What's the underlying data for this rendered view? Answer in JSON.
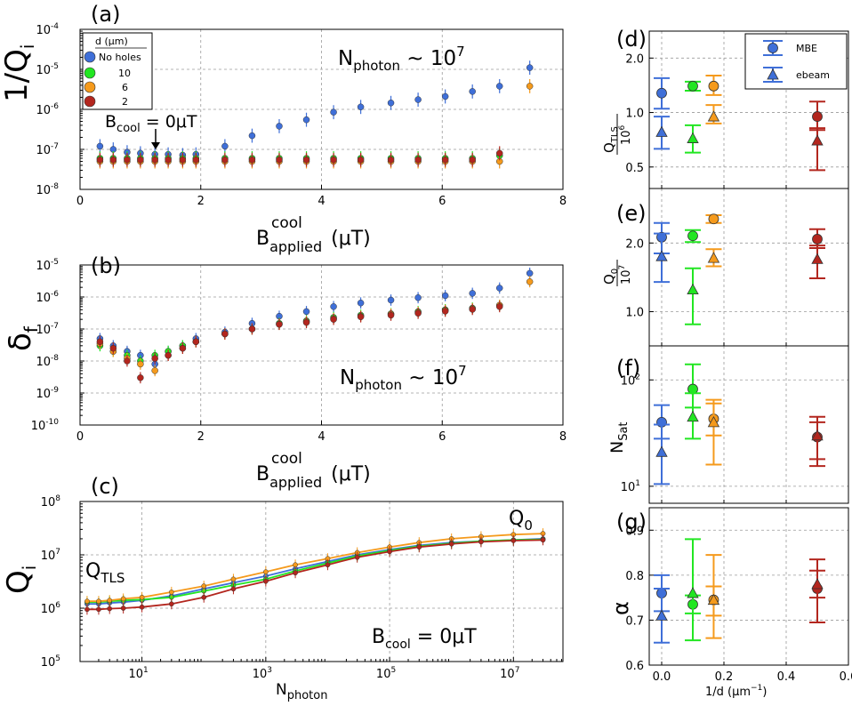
{
  "colors": {
    "nohole": "#3f6fd8",
    "d10": "#22e622",
    "d6": "#f59a1c",
    "d2": "#b3261e"
  },
  "chart_data": [
    {
      "panel": "a",
      "label": "(a)",
      "type": "scatter",
      "xlim": [
        0,
        8
      ],
      "ylim_log10": [
        -8,
        -4
      ],
      "xticks": [
        "0",
        "2",
        "4",
        "6",
        "8"
      ],
      "yticks": [
        "10",
        "10",
        "10",
        "10",
        "10"
      ],
      "yticks_exp": [
        "-8",
        "-7",
        "-6",
        "-5",
        "-4"
      ],
      "ylabel": "1/Q",
      "ylabel_sub": "i",
      "xlabel": "B",
      "xlabel_sub": "applied",
      "xlabel_sup": "cool",
      "xlabel_unit": "(μT)",
      "annotation_main": "N",
      "annotation_main_sub": "photon",
      "annotation_main_rest": " ~ 10",
      "annotation_main_exp": "7",
      "annotation_2": "B",
      "annotation_2_sub": "cool",
      "annotation_2_rest": " = 0μT",
      "legend_title": "d (μm)",
      "legend_entries": [
        "No holes",
        "10",
        "6",
        "2"
      ],
      "series": [
        {
          "name": "No holes",
          "color_key": "nohole",
          "x": [
            0.33,
            0.55,
            0.78,
            1.0,
            1.24,
            1.46,
            1.7,
            1.92,
            2.4,
            2.85,
            3.3,
            3.75,
            4.2,
            4.65,
            5.15,
            5.6,
            6.05,
            6.5,
            6.95,
            7.45
          ],
          "y": [
            1.2e-07,
            1e-07,
            8.5e-08,
            8e-08,
            7.5e-08,
            7.5e-08,
            7.2e-08,
            7.5e-08,
            1.2e-07,
            2.2e-07,
            3.8e-07,
            5.5e-07,
            8.5e-07,
            1.15e-06,
            1.45e-06,
            1.75e-06,
            2.1e-06,
            2.8e-06,
            3.8e-06,
            1.1e-05
          ]
        },
        {
          "name": "10",
          "color_key": "d10",
          "x": [
            0.33,
            0.55,
            0.78,
            1.0,
            1.24,
            1.46,
            1.7,
            1.92,
            2.4,
            2.85,
            3.3,
            3.75,
            4.2,
            4.65,
            5.15,
            5.6,
            6.05,
            6.5,
            6.95
          ],
          "y": [
            6e-08,
            6e-08,
            6e-08,
            6e-08,
            6e-08,
            6e-08,
            6e-08,
            6e-08,
            6e-08,
            6e-08,
            6e-08,
            6e-08,
            6e-08,
            6e-08,
            6e-08,
            6e-08,
            6e-08,
            6e-08,
            7e-08
          ]
        },
        {
          "name": "6",
          "color_key": "d6",
          "x": [
            0.33,
            0.55,
            0.78,
            1.0,
            1.24,
            1.46,
            1.7,
            1.92,
            2.4,
            2.85,
            3.3,
            3.75,
            4.2,
            4.65,
            5.15,
            5.6,
            6.05,
            6.5,
            6.95,
            7.45
          ],
          "y": [
            5e-08,
            5e-08,
            5e-08,
            5e-08,
            5e-08,
            5e-08,
            5e-08,
            5e-08,
            5e-08,
            5e-08,
            5e-08,
            5e-08,
            5e-08,
            5e-08,
            5e-08,
            5e-08,
            5e-08,
            5e-08,
            5e-08,
            3.8e-06
          ]
        },
        {
          "name": "2",
          "color_key": "d2",
          "x": [
            0.33,
            0.55,
            0.78,
            1.0,
            1.24,
            1.46,
            1.7,
            1.92,
            2.4,
            2.85,
            3.3,
            3.75,
            4.2,
            4.65,
            5.15,
            5.6,
            6.05,
            6.5,
            6.95
          ],
          "y": [
            5.5e-08,
            5.5e-08,
            5.5e-08,
            5.5e-08,
            5.5e-08,
            5.5e-08,
            5.5e-08,
            5.5e-08,
            5.5e-08,
            5.5e-08,
            5.5e-08,
            5.5e-08,
            5.5e-08,
            5.5e-08,
            5.5e-08,
            5.5e-08,
            5.5e-08,
            5.5e-08,
            8e-08
          ]
        }
      ]
    },
    {
      "panel": "b",
      "label": "(b)",
      "type": "scatter",
      "xlim": [
        0,
        8
      ],
      "ylim_log10": [
        -10,
        -5
      ],
      "xticks": [
        "0",
        "2",
        "4",
        "6",
        "8"
      ],
      "yticks": [
        "10",
        "10",
        "10",
        "10",
        "10",
        "10"
      ],
      "yticks_exp": [
        "-10",
        "-9",
        "-8",
        "-7",
        "-6",
        "-5"
      ],
      "ylabel": "δ",
      "ylabel_sub": "f",
      "xlabel": "B",
      "xlabel_sub": "applied",
      "xlabel_sup": "cool",
      "xlabel_unit": "(μT)",
      "annotation_main": "N",
      "annotation_main_sub": "photon",
      "annotation_main_rest": " ~ 10",
      "annotation_main_exp": "7",
      "series": [
        {
          "name": "No holes",
          "color_key": "nohole",
          "x": [
            0.33,
            0.55,
            0.78,
            1.0,
            1.24,
            1.46,
            1.7,
            1.92,
            2.4,
            2.85,
            3.3,
            3.75,
            4.2,
            4.65,
            5.15,
            5.6,
            6.05,
            6.5,
            6.95,
            7.45
          ],
          "y": [
            5e-08,
            3e-08,
            2e-08,
            1.5e-08,
            8e-09,
            2e-08,
            3e-08,
            5e-08,
            8e-08,
            1.5e-07,
            2.5e-07,
            3.5e-07,
            5e-07,
            6.5e-07,
            8e-07,
            9.5e-07,
            1.1e-06,
            1.3e-06,
            1.9e-06,
            5.5e-06
          ]
        },
        {
          "name": "10",
          "color_key": "d10",
          "x": [
            0.33,
            0.55,
            0.78,
            1.0,
            1.24,
            1.46,
            1.7,
            1.92,
            2.4,
            2.85,
            3.3,
            3.75,
            4.2,
            4.65,
            5.15,
            5.6,
            6.05,
            6.5,
            6.95
          ],
          "y": [
            3e-08,
            2e-08,
            1.5e-08,
            1e-08,
            1.5e-08,
            2e-08,
            3e-08,
            4e-08,
            7e-08,
            1e-07,
            1.5e-07,
            1.8e-07,
            2.3e-07,
            2.7e-07,
            3e-07,
            3.5e-07,
            4e-07,
            4.5e-07,
            5.5e-07
          ]
        },
        {
          "name": "6",
          "color_key": "d6",
          "x": [
            0.33,
            0.55,
            0.78,
            1.0,
            1.24,
            1.46,
            1.7,
            1.92,
            2.4,
            2.85,
            3.3,
            3.75,
            4.2,
            4.65,
            5.15,
            5.6,
            6.05,
            6.5,
            6.95,
            7.45
          ],
          "y": [
            3.5e-08,
            2e-08,
            1.2e-08,
            8e-09,
            5e-09,
            1.5e-08,
            2.5e-08,
            4e-08,
            7e-08,
            1e-07,
            1.4e-07,
            1.7e-07,
            2.1e-07,
            2.5e-07,
            2.9e-07,
            3.3e-07,
            3.8e-07,
            4.3e-07,
            5.5e-07,
            3e-06
          ]
        },
        {
          "name": "2",
          "color_key": "d2",
          "x": [
            0.33,
            0.55,
            0.78,
            1.0,
            1.24,
            1.46,
            1.7,
            1.92,
            2.4,
            2.85,
            3.3,
            3.75,
            4.2,
            4.65,
            5.15,
            5.6,
            6.05,
            6.5,
            6.95
          ],
          "y": [
            4e-08,
            2.5e-08,
            1e-08,
            3e-09,
            1.2e-08,
            1.5e-08,
            2.5e-08,
            4e-08,
            7e-08,
            1e-07,
            1.4e-07,
            1.6e-07,
            2e-07,
            2.4e-07,
            2.7e-07,
            3.1e-07,
            3.6e-07,
            4.1e-07,
            5e-07
          ]
        }
      ]
    },
    {
      "panel": "c",
      "label": "(c)",
      "type": "line",
      "xlim_log10": [
        0,
        7.8
      ],
      "ylim_log10": [
        5,
        8
      ],
      "xticks": [
        "10",
        "10",
        "10",
        "10"
      ],
      "xticks_exp": [
        "1",
        "3",
        "5",
        "7"
      ],
      "yticks": [
        "10",
        "10",
        "10",
        "10"
      ],
      "yticks_exp": [
        "5",
        "6",
        "7",
        "8"
      ],
      "ylabel": "Q",
      "ylabel_sub": "i",
      "xlabel": "N",
      "xlabel_sub": "photon",
      "annotation_tls": "Q",
      "annotation_tls_sub": "TLS",
      "annotation_q0": "Q",
      "annotation_q0_sub": "0",
      "annotation_b": "B",
      "annotation_b_sub": "cool",
      "annotation_b_rest": " = 0μT",
      "series": [
        {
          "name": "No holes",
          "color_key": "nohole",
          "x": [
            1.3,
            2.0,
            3.0,
            5.0,
            10,
            30,
            100,
            300,
            1000,
            3000,
            10000.0,
            30000.0,
            100000.0,
            300000.0,
            1000000.0,
            3000000.0,
            10000000.0,
            30000000.0
          ],
          "y": [
            1200000.0,
            1200000.0,
            1250000.0,
            1300000.0,
            1400000.0,
            1700000.0,
            2300000.0,
            3000000.0,
            4000000.0,
            5500000.0,
            7500000.0,
            10000000.0,
            12500000.0,
            15000000.0,
            17000000.0,
            18000000.0,
            19000000.0,
            20000000.0
          ]
        },
        {
          "name": "10",
          "color_key": "d10",
          "x": [
            1.3,
            2.0,
            3.0,
            5.0,
            10,
            30,
            100,
            300,
            1000,
            3000,
            10000.0,
            30000.0,
            100000.0,
            300000.0,
            1000000.0,
            3000000.0,
            10000000.0,
            30000000.0
          ],
          "y": [
            1300000.0,
            1300000.0,
            1350000.0,
            1400000.0,
            1450000.0,
            1600000.0,
            2100000.0,
            2700000.0,
            3500000.0,
            5000000.0,
            7000000.0,
            9500000.0,
            12000000.0,
            14500000.0,
            16500000.0,
            18000000.0,
            19000000.0,
            19500000.0
          ]
        },
        {
          "name": "6",
          "color_key": "d6",
          "x": [
            1.3,
            2.0,
            3.0,
            5.0,
            10,
            30,
            100,
            300,
            1000,
            3000,
            10000.0,
            30000.0,
            100000.0,
            300000.0,
            1000000.0,
            3000000.0,
            10000000.0,
            30000000.0
          ],
          "y": [
            1350000.0,
            1350000.0,
            1400000.0,
            1500000.0,
            1600000.0,
            2000000.0,
            2600000.0,
            3500000.0,
            4800000.0,
            6500000.0,
            8500000.0,
            11000000.0,
            14000000.0,
            17000000.0,
            20000000.0,
            22000000.0,
            24000000.0,
            25000000.0
          ]
        },
        {
          "name": "2",
          "color_key": "d2",
          "x": [
            1.3,
            2.0,
            3.0,
            5.0,
            10,
            30,
            100,
            300,
            1000,
            3000,
            10000.0,
            30000.0,
            100000.0,
            300000.0,
            1000000.0,
            3000000.0,
            10000000.0,
            30000000.0
          ],
          "y": [
            950000.0,
            950000.0,
            980000.0,
            1000000.0,
            1050000.0,
            1200000.0,
            1600000.0,
            2300000.0,
            3200000.0,
            4600000.0,
            6500000.0,
            9000000.0,
            11500000.0,
            14000000.0,
            16000000.0,
            17500000.0,
            18500000.0,
            19000000.0
          ]
        }
      ]
    },
    {
      "panel": "d",
      "label": "(d)",
      "type": "scatter",
      "ylim_log10": [
        -0.42,
        0.45
      ],
      "yticks": [
        "0.5",
        "1.0",
        "2.0"
      ],
      "yticks_vals": [
        0.5,
        1.0,
        2.0
      ],
      "ylabel_num": "Q",
      "ylabel_num_sub": "TLS",
      "ylabel_den": "10",
      "ylabel_den_exp": "6",
      "legend_entries": [
        "MBE",
        "ebeam"
      ],
      "points": [
        {
          "x": 0.0,
          "mbe": 1.28,
          "mbe_err": [
            1.05,
            1.55
          ],
          "ebeam": 0.78,
          "ebeam_err": [
            0.63,
            0.95
          ],
          "color_key": "nohole"
        },
        {
          "x": 0.1,
          "mbe": 1.4,
          "mbe_err": [
            1.32,
            1.48
          ],
          "ebeam": 0.72,
          "ebeam_err": [
            0.6,
            0.85
          ],
          "color_key": "d10"
        },
        {
          "x": 0.167,
          "mbe": 1.4,
          "mbe_err": [
            1.25,
            1.6
          ],
          "ebeam": 0.95,
          "ebeam_err": [
            0.87,
            1.1
          ],
          "color_key": "d6"
        },
        {
          "x": 0.5,
          "mbe": 0.95,
          "mbe_err": [
            0.8,
            1.15
          ],
          "ebeam": 0.7,
          "ebeam_err": [
            0.48,
            0.82
          ],
          "color_key": "d2"
        }
      ]
    },
    {
      "panel": "e",
      "label": "(e)",
      "type": "scatter",
      "ylim_log10": [
        -0.15,
        0.54
      ],
      "yticks": [
        "1.0",
        "2.0"
      ],
      "yticks_vals": [
        1.0,
        2.0
      ],
      "ylabel_num": "Q",
      "ylabel_num_sub": "0",
      "ylabel_den": "10",
      "ylabel_den_exp": "7",
      "points": [
        {
          "x": 0.0,
          "mbe": 2.12,
          "mbe_err": [
            1.8,
            2.45
          ],
          "ebeam": 1.75,
          "ebeam_err": [
            1.35,
            2.2
          ],
          "color_key": "nohole"
        },
        {
          "x": 0.1,
          "mbe": 2.15,
          "mbe_err": [
            2.02,
            2.28
          ],
          "ebeam": 1.25,
          "ebeam_err": [
            0.88,
            1.55
          ],
          "color_key": "d10"
        },
        {
          "x": 0.167,
          "mbe": 2.55,
          "mbe_err": [
            2.45,
            2.65
          ],
          "ebeam": 1.72,
          "ebeam_err": [
            1.58,
            1.88
          ],
          "color_key": "d6"
        },
        {
          "x": 0.5,
          "mbe": 2.08,
          "mbe_err": [
            1.9,
            2.3
          ],
          "ebeam": 1.7,
          "ebeam_err": [
            1.4,
            1.95
          ],
          "color_key": "d2"
        }
      ]
    },
    {
      "panel": "f",
      "label": "(f)",
      "type": "scatter",
      "ylim_log10": [
        0.84,
        2.32
      ],
      "yticks": [
        "10",
        "10"
      ],
      "yticks_exp": [
        "1",
        "2"
      ],
      "yticks_vals": [
        10,
        100
      ],
      "ylabel": "N",
      "ylabel_sub": "Sat",
      "points": [
        {
          "x": 0.0,
          "mbe": 40,
          "mbe_err": [
            28,
            58
          ],
          "ebeam": 21,
          "ebeam_err": [
            10.5,
            38
          ],
          "color_key": "nohole"
        },
        {
          "x": 0.1,
          "mbe": 82,
          "mbe_err": [
            55,
            140
          ],
          "ebeam": 45,
          "ebeam_err": [
            28,
            75
          ],
          "color_key": "d10"
        },
        {
          "x": 0.167,
          "mbe": 43,
          "mbe_err": [
            30,
            65
          ],
          "ebeam": 40,
          "ebeam_err": [
            16,
            60
          ],
          "color_key": "d6"
        },
        {
          "x": 0.5,
          "mbe": 29,
          "mbe_err": [
            18,
            45
          ],
          "ebeam": 30,
          "ebeam_err": [
            15.5,
            40
          ],
          "color_key": "d2"
        }
      ]
    },
    {
      "panel": "g",
      "label": "(g)",
      "type": "scatter",
      "xlim": [
        -0.04,
        0.6
      ],
      "ylim": [
        0.6,
        0.95
      ],
      "xticks": [
        "0.0",
        "0.2",
        "0.4",
        "0.6"
      ],
      "xticks_vals": [
        0.0,
        0.2,
        0.4,
        0.6
      ],
      "yticks": [
        "0.6",
        "0.7",
        "0.8",
        "0.9"
      ],
      "yticks_vals": [
        0.6,
        0.7,
        0.8,
        0.9
      ],
      "ylabel": "α",
      "xlabel": "1/d (μm",
      "xlabel_exp": "−1",
      "xlabel_close": ")",
      "points": [
        {
          "x": 0.0,
          "mbe": 0.76,
          "mbe_err": [
            0.72,
            0.8
          ],
          "ebeam": 0.71,
          "ebeam_err": [
            0.65,
            0.77
          ],
          "color_key": "nohole"
        },
        {
          "x": 0.1,
          "mbe": 0.735,
          "mbe_err": [
            0.715,
            0.755
          ],
          "ebeam": 0.76,
          "ebeam_err": [
            0.655,
            0.88
          ],
          "color_key": "d10"
        },
        {
          "x": 0.167,
          "mbe": 0.745,
          "mbe_err": [
            0.71,
            0.775
          ],
          "ebeam": 0.745,
          "ebeam_err": [
            0.66,
            0.845
          ],
          "color_key": "d6"
        },
        {
          "x": 0.5,
          "mbe": 0.77,
          "mbe_err": [
            0.75,
            0.81
          ],
          "ebeam": 0.78,
          "ebeam_err": [
            0.695,
            0.835
          ],
          "color_key": "d2"
        }
      ]
    }
  ]
}
